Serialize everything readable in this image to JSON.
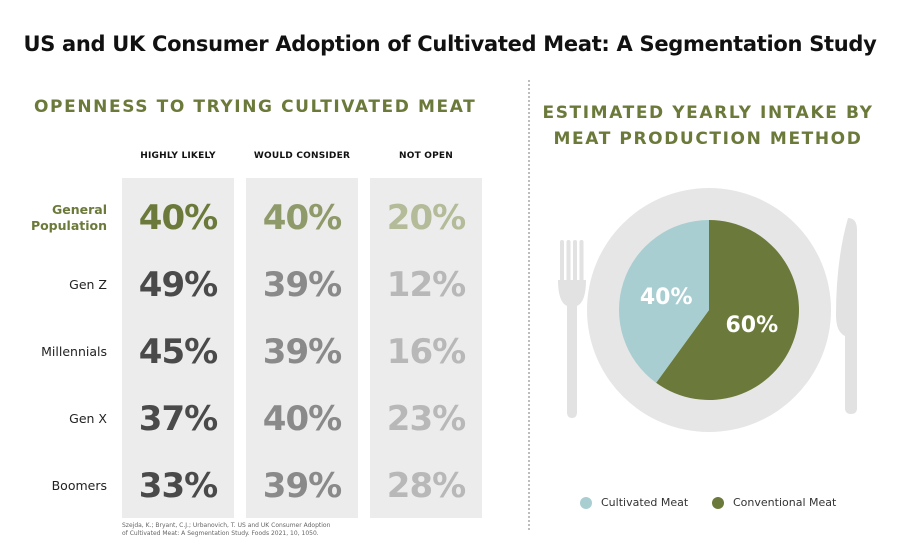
{
  "title": "US and UK Consumer Adoption of Cultivated Meat: A Segmentation Study",
  "left_section": {
    "title": "OPENNESS TO TRYING CULTIVATED MEAT"
  },
  "right_section": {
    "title_line1": "ESTIMATED YEARLY INTAKE BY",
    "title_line2": "MEAT PRODUCTION METHOD"
  },
  "citation_line1": "Szejda, K.; Bryant, C.J.; Urbanovich, T. US and UK Consumer Adoption",
  "citation_line2": "of Cultivated Meat: A Segmentation Study. Foods 2021, 10, 1050.",
  "colors": {
    "accent": "#6b7a3a",
    "cultivated": "#a9ced1",
    "conventional": "#6b7a3a",
    "plate": "#e6e6e6",
    "cutlery": "#e2e2e2"
  },
  "chart_data": [
    {
      "type": "table",
      "title": "OPENNESS TO TRYING CULTIVATED MEAT",
      "columns": [
        "HIGHLY LIKELY",
        "WOULD CONSIDER",
        "NOT OPEN"
      ],
      "rows": [
        {
          "label_lines": [
            "General",
            "Population"
          ],
          "values": [
            "40%",
            "40%",
            "20%"
          ],
          "highlight": true
        },
        {
          "label_lines": [
            "Gen Z"
          ],
          "values": [
            "49%",
            "39%",
            "12%"
          ],
          "highlight": false
        },
        {
          "label_lines": [
            "Millennials"
          ],
          "values": [
            "45%",
            "39%",
            "16%"
          ],
          "highlight": false
        },
        {
          "label_lines": [
            "Gen X"
          ],
          "values": [
            "37%",
            "40%",
            "23%"
          ],
          "highlight": false
        },
        {
          "label_lines": [
            "Boomers"
          ],
          "values": [
            "33%",
            "39%",
            "28%"
          ],
          "highlight": false
        }
      ],
      "highlight_colors": [
        "#6b7a3a",
        "#8f9a6a",
        "#b3bb98"
      ],
      "value_colors": [
        "#4a4a4a",
        "#8a8a8a",
        "#b8b8b8"
      ]
    },
    {
      "type": "pie",
      "title": "ESTIMATED YEARLY INTAKE BY MEAT PRODUCTION METHOD",
      "slices": [
        {
          "name": "Cultivated Meat",
          "value": 40,
          "label": "40%",
          "color": "#a9ced1"
        },
        {
          "name": "Conventional Meat",
          "value": 60,
          "label": "60%",
          "color": "#6b7a3a"
        }
      ],
      "legend_position": "bottom"
    }
  ]
}
